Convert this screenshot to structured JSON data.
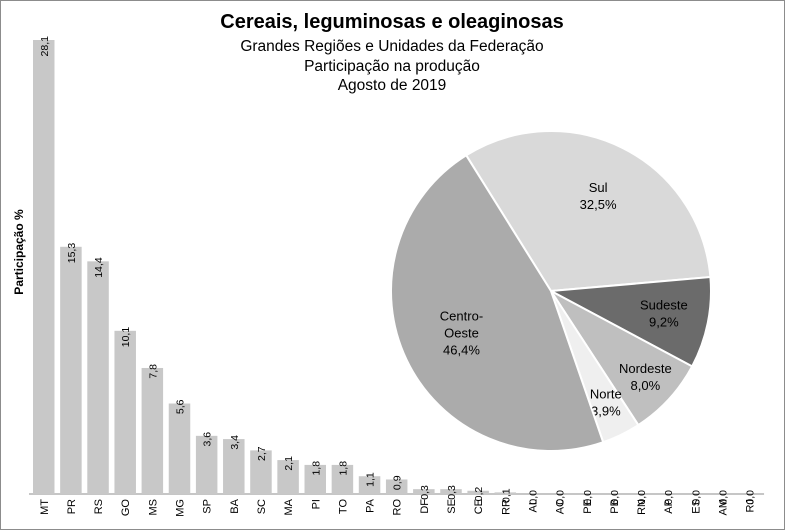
{
  "chart_data": [
    {
      "type": "bar",
      "title": "Cereais, leguminosas e oleaginosas",
      "subtitles": [
        "Grandes Regiões e Unidades da Federação",
        "Participação na produção",
        "Agosto de 2019"
      ],
      "ylabel": "Participação %",
      "xlabel": "",
      "ylim": [
        0,
        28.1
      ],
      "grid": false,
      "categories": [
        "MT",
        "PR",
        "RS",
        "GO",
        "MS",
        "MG",
        "SP",
        "BA",
        "SC",
        "MA",
        "PI",
        "TO",
        "PA",
        "RO",
        "DF",
        "SE",
        "CE",
        "RR",
        "AL",
        "AC",
        "PE",
        "PB",
        "RN",
        "AP",
        "ES",
        "AM",
        "RJ"
      ],
      "values": [
        28.1,
        15.3,
        14.4,
        10.1,
        7.8,
        5.6,
        3.6,
        3.4,
        2.7,
        2.1,
        1.8,
        1.8,
        1.1,
        0.9,
        0.3,
        0.3,
        0.2,
        0.1,
        0.0,
        0.0,
        0.0,
        0.0,
        0.0,
        0.0,
        0.0,
        0.0,
        0.0
      ],
      "value_labels": [
        "28,1",
        "15,3",
        "14,4",
        "10,1",
        "7,8",
        "5,6",
        "3,6",
        "3,4",
        "2,7",
        "2,1",
        "1,8",
        "1,8",
        "1,1",
        "0,9",
        "0,3",
        "0,3",
        "0,2",
        "0,1",
        "0,0",
        "0,0",
        "0,0",
        "0,0",
        "0,0",
        "0,0",
        "0,0",
        "0,0",
        "0,0"
      ],
      "bar_color": "#c8c8c8"
    },
    {
      "type": "pie",
      "slices": [
        {
          "label_lines": [
            "Sul",
            "32,5%"
          ],
          "value": 32.5,
          "color": "#d9d9d9"
        },
        {
          "label_lines": [
            "Sudeste",
            "9,2%"
          ],
          "value": 9.2,
          "color": "#6b6b6b"
        },
        {
          "label_lines": [
            "Nordeste",
            "8,0%"
          ],
          "value": 8.0,
          "color": "#bfbfbf"
        },
        {
          "label_lines": [
            "Norte",
            "3,9%"
          ],
          "value": 3.9,
          "color": "#efefef"
        },
        {
          "label_lines": [
            "Centro-",
            "Oeste",
            "46,4%"
          ],
          "value": 46.4,
          "color": "#ababab"
        }
      ]
    }
  ]
}
